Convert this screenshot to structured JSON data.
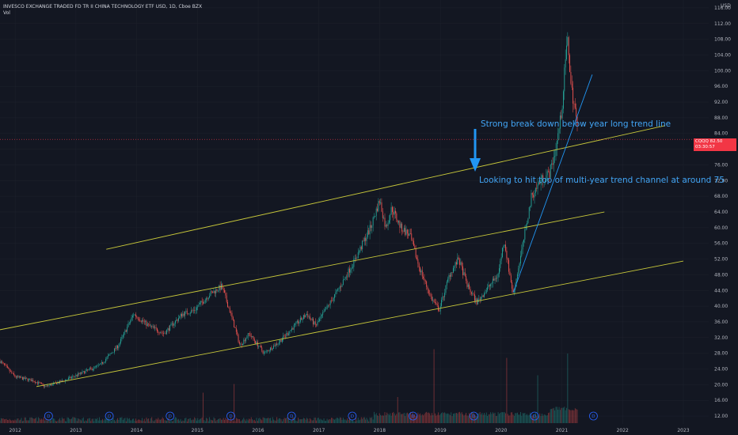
{
  "header": {
    "title": "INVESCO EXCHANGE TRADED FD TR II CHINA TECHNOLOGY ETF USD, 1D, Cboe BZX",
    "volume_label": "Vol"
  },
  "currency_label": "USD",
  "price_tag": {
    "symbol": "CQQQ",
    "price": "82.50",
    "countdown": "03:30:57"
  },
  "annotations": {
    "break": "Strong break down below year long trend line",
    "target": "Looking to hit top of multi-year trend channel at around 75"
  },
  "colors": {
    "background": "#131722",
    "up": "#26a69a",
    "down": "#ef5350",
    "channel": "#c8c83a",
    "trend": "#2196f3",
    "text": "#b2b5be",
    "price_tag": "#f23645"
  },
  "chart_data": {
    "type": "candlestick",
    "y_axis": {
      "ticks": [
        12,
        16,
        20,
        24,
        28,
        32,
        36,
        40,
        44,
        48,
        52,
        56,
        60,
        64,
        68,
        72,
        76,
        80,
        84,
        88,
        92,
        96,
        100,
        104,
        108,
        112,
        116
      ],
      "range": [
        10,
        118
      ]
    },
    "x_axis": {
      "ticks": [
        "2012",
        "2013",
        "2014",
        "2015",
        "2016",
        "2017",
        "2018",
        "2019",
        "2020",
        "2021",
        "2022",
        "2023"
      ],
      "range": [
        2011.75,
        2023.9
      ]
    },
    "price_path": [
      {
        "t": 2011.75,
        "p": 26
      },
      {
        "t": 2012.0,
        "p": 22
      },
      {
        "t": 2012.3,
        "p": 21
      },
      {
        "t": 2012.5,
        "p": 19.5
      },
      {
        "t": 2012.8,
        "p": 21
      },
      {
        "t": 2013.1,
        "p": 23
      },
      {
        "t": 2013.4,
        "p": 25
      },
      {
        "t": 2013.7,
        "p": 30
      },
      {
        "t": 2013.95,
        "p": 38
      },
      {
        "t": 2014.2,
        "p": 35
      },
      {
        "t": 2014.45,
        "p": 33
      },
      {
        "t": 2014.75,
        "p": 38
      },
      {
        "t": 2014.95,
        "p": 39
      },
      {
        "t": 2015.2,
        "p": 43
      },
      {
        "t": 2015.4,
        "p": 45
      },
      {
        "t": 2015.55,
        "p": 38
      },
      {
        "t": 2015.7,
        "p": 30
      },
      {
        "t": 2015.85,
        "p": 33
      },
      {
        "t": 2016.1,
        "p": 28
      },
      {
        "t": 2016.35,
        "p": 31
      },
      {
        "t": 2016.6,
        "p": 35
      },
      {
        "t": 2016.8,
        "p": 38
      },
      {
        "t": 2016.95,
        "p": 35
      },
      {
        "t": 2017.15,
        "p": 40
      },
      {
        "t": 2017.35,
        "p": 45
      },
      {
        "t": 2017.6,
        "p": 52
      },
      {
        "t": 2017.85,
        "p": 60
      },
      {
        "t": 2018.0,
        "p": 67
      },
      {
        "t": 2018.1,
        "p": 60
      },
      {
        "t": 2018.2,
        "p": 65
      },
      {
        "t": 2018.35,
        "p": 60
      },
      {
        "t": 2018.5,
        "p": 58
      },
      {
        "t": 2018.65,
        "p": 50
      },
      {
        "t": 2018.85,
        "p": 42
      },
      {
        "t": 2018.98,
        "p": 39
      },
      {
        "t": 2019.15,
        "p": 48
      },
      {
        "t": 2019.3,
        "p": 52
      },
      {
        "t": 2019.45,
        "p": 45
      },
      {
        "t": 2019.6,
        "p": 41
      },
      {
        "t": 2019.75,
        "p": 44
      },
      {
        "t": 2019.95,
        "p": 48
      },
      {
        "t": 2020.05,
        "p": 57
      },
      {
        "t": 2020.12,
        "p": 50
      },
      {
        "t": 2020.2,
        "p": 43
      },
      {
        "t": 2020.35,
        "p": 55
      },
      {
        "t": 2020.5,
        "p": 68
      },
      {
        "t": 2020.65,
        "p": 72
      },
      {
        "t": 2020.8,
        "p": 74
      },
      {
        "t": 2020.9,
        "p": 80
      },
      {
        "t": 2021.0,
        "p": 90
      },
      {
        "t": 2021.06,
        "p": 103
      },
      {
        "t": 2021.1,
        "p": 108
      },
      {
        "t": 2021.15,
        "p": 96
      },
      {
        "t": 2021.22,
        "p": 90
      },
      {
        "t": 2021.27,
        "p": 82.5
      }
    ],
    "volume_peaks": [
      {
        "t": 2015.6,
        "v": 0.45
      },
      {
        "t": 2018.9,
        "v": 0.85
      },
      {
        "t": 2020.1,
        "v": 0.75
      },
      {
        "t": 2020.6,
        "v": 0.55
      },
      {
        "t": 2021.1,
        "v": 0.8
      },
      {
        "t": 2015.1,
        "v": 0.35
      },
      {
        "t": 2018.3,
        "v": 0.3
      }
    ],
    "trend_lines": [
      {
        "name": "channel-top",
        "from": {
          "t": 2013.5,
          "p": 54.5
        },
        "to": {
          "t": 2022.7,
          "p": 86
        }
      },
      {
        "name": "channel-middle",
        "from": {
          "t": 2011.75,
          "p": 34
        },
        "to": {
          "t": 2021.7,
          "p": 64
        }
      },
      {
        "name": "channel-bottom",
        "from": {
          "t": 2012.35,
          "p": 19.5
        },
        "to": {
          "t": 2023.0,
          "p": 51.5
        }
      },
      {
        "name": "year-long-trend",
        "from": {
          "t": 2020.2,
          "p": 43.5
        },
        "to": {
          "t": 2021.5,
          "p": 99
        }
      }
    ],
    "dividend_markers": [
      2012.55,
      2013.55,
      2014.55,
      2015.55,
      2016.55,
      2017.55,
      2018.55,
      2019.55,
      2020.55,
      2021.52
    ]
  }
}
